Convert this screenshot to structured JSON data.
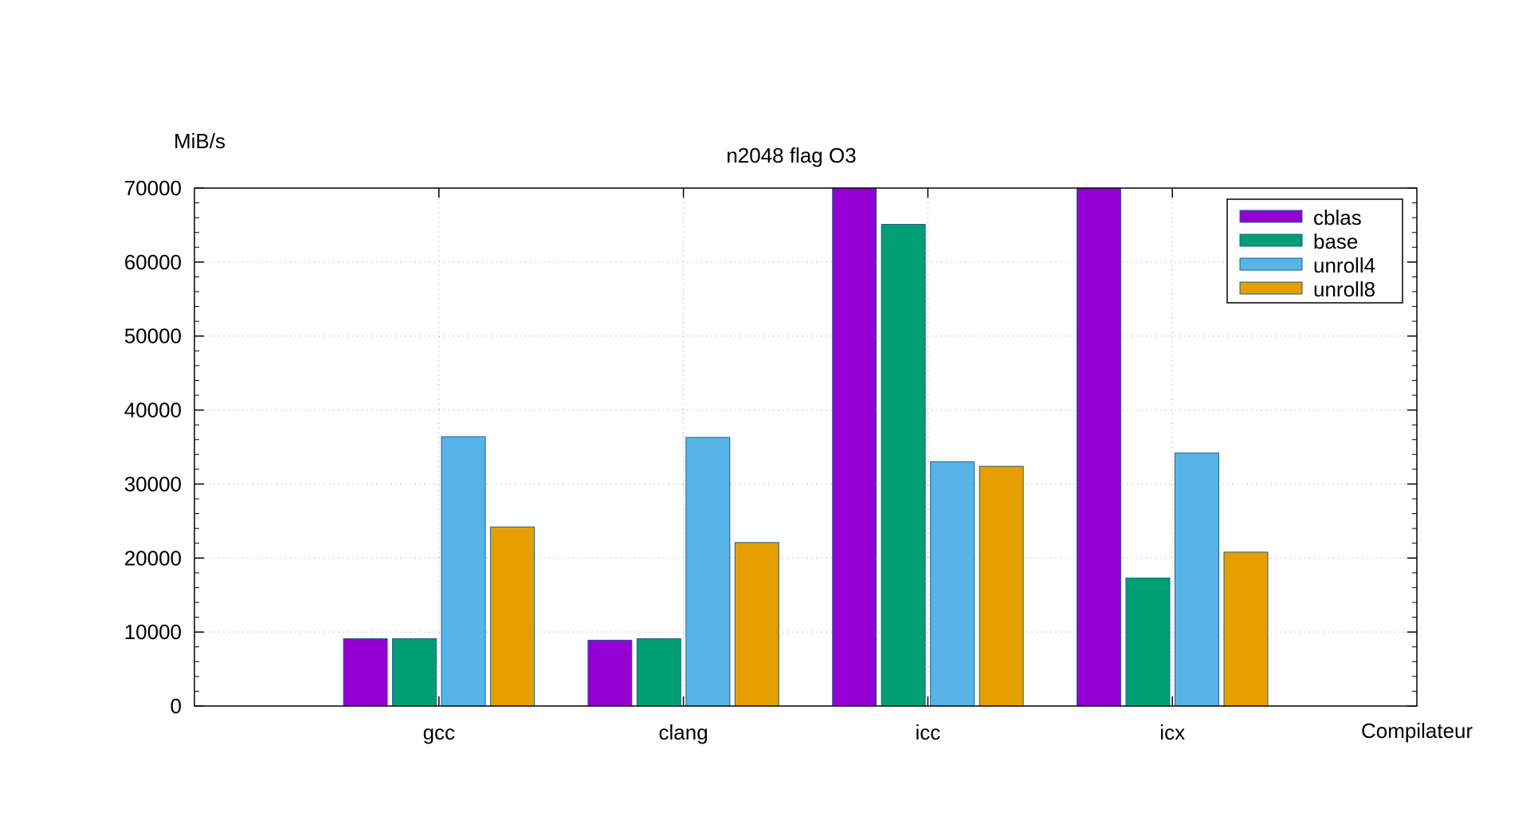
{
  "chart_data": {
    "type": "bar",
    "title": "n2048 flag O3",
    "ylabel": "MiB/s",
    "xlabel": "Compilateur",
    "ylim": [
      0,
      70000
    ],
    "yticks": [
      0,
      10000,
      20000,
      30000,
      40000,
      50000,
      60000,
      70000
    ],
    "grid": true,
    "legend_position": "top-right",
    "categories": [
      "gcc",
      "clang",
      "icc",
      "icx"
    ],
    "series": [
      {
        "name": "cblas",
        "color": "#9400d3",
        "values": [
          9100,
          8900,
          70000,
          70000
        ]
      },
      {
        "name": "base",
        "color": "#009e73",
        "values": [
          9100,
          9100,
          65100,
          17300
        ]
      },
      {
        "name": "unroll4",
        "color": "#56b4e9",
        "values": [
          36400,
          36300,
          33000,
          34200
        ]
      },
      {
        "name": "unroll8",
        "color": "#e69f00",
        "values": [
          24200,
          22100,
          32400,
          20800
        ]
      }
    ]
  }
}
